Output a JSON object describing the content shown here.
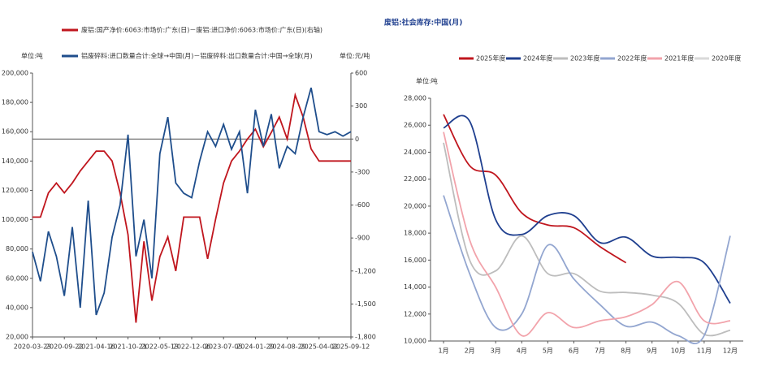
{
  "chart_data": [
    {
      "type": "line",
      "y_unit_label": "单位:吨",
      "y2_unit_label": "单位:元/吨",
      "categories": [
        "2020-03-23",
        null,
        null,
        null,
        "2020-09-22",
        null,
        null,
        null,
        "2021-04-16",
        null,
        null,
        null,
        "2021-10-21",
        null,
        null,
        null,
        "2022-05-13",
        null,
        null,
        null,
        "2022-12-06",
        null,
        null,
        null,
        "2023-07-05",
        null,
        null,
        null,
        "2024-01-29",
        null,
        null,
        null,
        "2024-08-29",
        null,
        null,
        null,
        "2025-04-02",
        null,
        null,
        null,
        "2025-09-12"
      ],
      "series": [
        {
          "name": "废铝:国产净价:6063:市场价:广东(日)－废铝:进口净价:6063:市场价:广东(日)(右轴)",
          "color": "#c0161e",
          "axis": "y2",
          "values": [
            -710,
            -710,
            -490,
            -400,
            -490,
            -400,
            -290,
            -200,
            -110,
            -110,
            -200,
            -490,
            -870,
            -1670,
            -930,
            -1470,
            -1070,
            -890,
            -1200,
            -710,
            -710,
            -710,
            -1090,
            -730,
            -400,
            -200,
            -110,
            0,
            90,
            -70,
            60,
            200,
            0,
            400,
            200,
            -90,
            -200,
            -200,
            -200,
            -200,
            -200
          ]
        },
        {
          "name": "铝废碎料:进口数量合计:全球→中国(月)－铝废碎料:出口数量合计:中国→全球(月)",
          "color": "#1f4e8c",
          "values": [
            78000,
            58000,
            92000,
            75000,
            48000,
            95000,
            40000,
            113000,
            35000,
            50000,
            88000,
            110000,
            158000,
            75000,
            100000,
            60000,
            145000,
            170000,
            125000,
            118000,
            115000,
            140000,
            160000,
            150000,
            165000,
            148000,
            160000,
            118000,
            175000,
            150000,
            172000,
            135000,
            150000,
            145000,
            170000,
            190000,
            160000,
            158000,
            160000,
            157000,
            160000
          ]
        }
      ],
      "ylim": [
        20000,
        200000
      ],
      "yticks": [
        {
          "value": 20000,
          "label": "20,000"
        },
        {
          "value": 40000,
          "label": "40,000"
        },
        {
          "value": 60000,
          "label": "60,000"
        },
        {
          "value": 80000,
          "label": "80,000"
        },
        {
          "value": 100000,
          "label": "100,000"
        },
        {
          "value": 120000,
          "label": "120,000"
        },
        {
          "value": 140000,
          "label": "140,000"
        },
        {
          "value": 160000,
          "label": "160,000"
        },
        {
          "value": 180000,
          "label": "180,000"
        },
        {
          "value": 200000,
          "label": "200,000"
        }
      ],
      "y2lim": [
        -1800,
        600
      ],
      "y2ticks": [
        {
          "value": -1800,
          "label": "-1,800"
        },
        {
          "value": -1500,
          "label": "-1,500"
        },
        {
          "value": -1200,
          "label": "-1,200"
        },
        -900,
        -600,
        -300,
        0,
        300,
        600
      ]
    },
    {
      "type": "line",
      "title": "废铝:社会库存:中国(月)",
      "y_unit_label": "单位:吨",
      "categories": [
        "1月",
        "2月",
        "3月",
        "4月",
        "5月",
        "6月",
        "7月",
        "8月",
        "9月",
        "10月",
        "11月",
        "12月"
      ],
      "series": [
        {
          "name": "2025年度",
          "color": "#c0161e",
          "values": [
            26800,
            23000,
            22300,
            19500,
            18600,
            18400,
            17000,
            15800,
            null,
            null,
            null,
            null
          ]
        },
        {
          "name": "2024年度",
          "color": "#1f3f8f",
          "values": [
            25800,
            26300,
            19000,
            17900,
            19300,
            19300,
            17300,
            17700,
            16300,
            16200,
            15800,
            12800
          ]
        },
        {
          "name": "2023年度",
          "color": "#bdbdbd",
          "values": [
            24700,
            16000,
            15200,
            17800,
            15000,
            15000,
            13700,
            13600,
            13400,
            12800,
            10500,
            10800
          ]
        },
        {
          "name": "2022年度",
          "color": "#93a6d0",
          "values": [
            20800,
            15000,
            11000,
            12000,
            17100,
            14600,
            12700,
            11100,
            11400,
            10400,
            10400,
            17800
          ]
        },
        {
          "name": "2021年度",
          "color": "#f2a3ab",
          "values": [
            25500,
            17500,
            14000,
            10400,
            12100,
            11000,
            11500,
            11800,
            12700,
            14400,
            11500,
            11500
          ]
        },
        {
          "name": "2020年度",
          "color": "#d9d9d9",
          "values": [
            null,
            null,
            null,
            null,
            null,
            null,
            null,
            null,
            null,
            null,
            null,
            null
          ]
        }
      ],
      "ylim": [
        10000,
        28000
      ],
      "yticks": [
        {
          "value": 10000,
          "label": "10,000"
        },
        {
          "value": 12000,
          "label": "12,000"
        },
        {
          "value": 14000,
          "label": "14,000"
        },
        {
          "value": 16000,
          "label": "16,000"
        },
        {
          "value": 18000,
          "label": "18,000"
        },
        {
          "value": 20000,
          "label": "20,000"
        },
        {
          "value": 22000,
          "label": "22,000"
        },
        {
          "value": 24000,
          "label": "24,000"
        },
        {
          "value": 26000,
          "label": "26,000"
        },
        {
          "value": 28000,
          "label": "28,000"
        }
      ]
    }
  ]
}
